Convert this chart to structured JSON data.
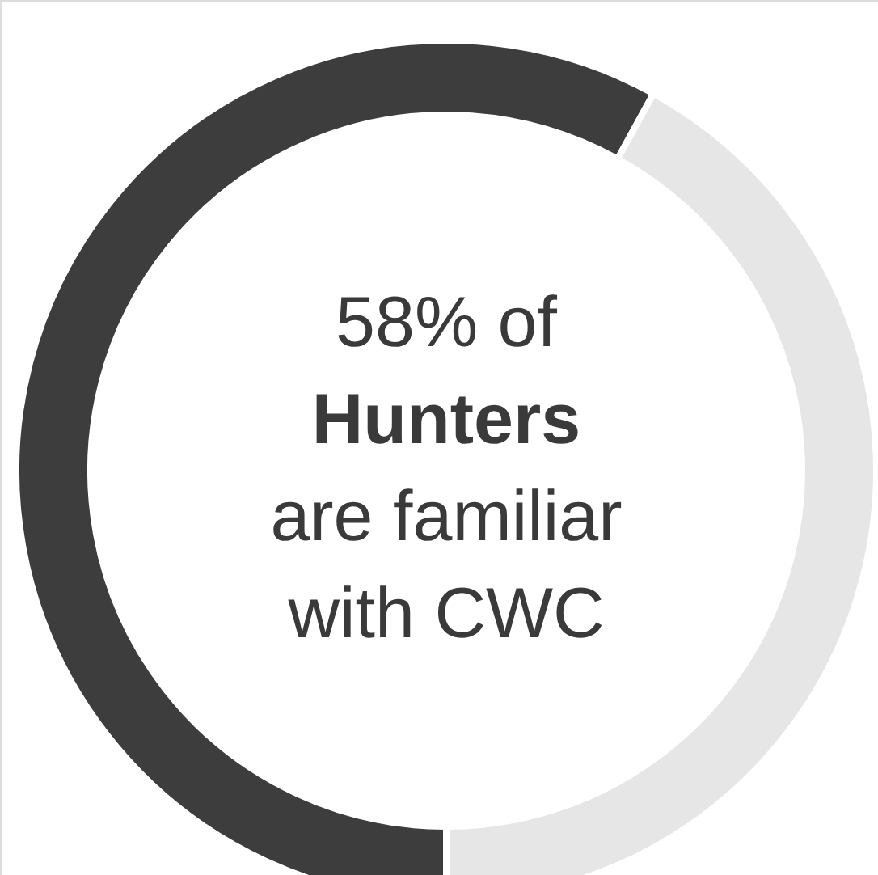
{
  "chart_data": {
    "type": "donut",
    "categories": [
      null,
      null
    ],
    "values": [
      58,
      42
    ],
    "colors": [
      "#3d3d3d",
      "#e6e6e6"
    ],
    "annotations": [
      "58% of",
      "Hunters",
      "are familiar",
      "with CWC"
    ]
  }
}
